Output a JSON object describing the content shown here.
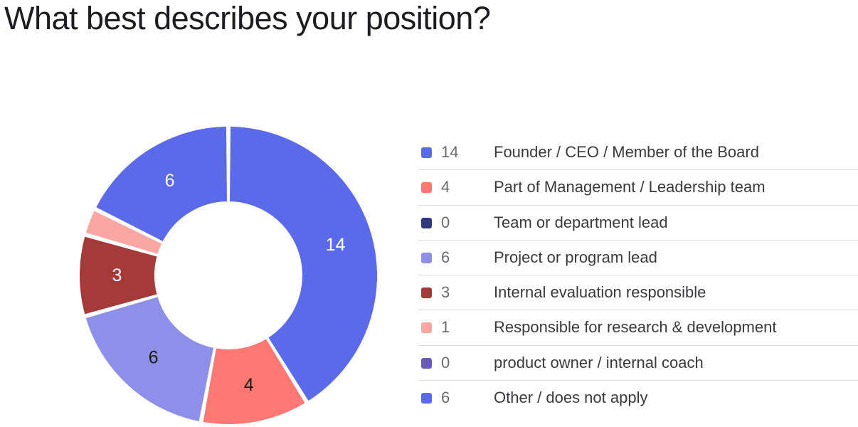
{
  "title": "What best describes your position?",
  "chart_data": {
    "type": "pie",
    "variant": "donut",
    "start_angle_deg": 0,
    "direction": "clockwise",
    "legend_position": "right",
    "slices": [
      {
        "label": "Founder / CEO / Member of the Board",
        "value": 14,
        "color": "#5b6ae8",
        "label_color": "#ffffff"
      },
      {
        "label": "Part of Management / Leadership team",
        "value": 4,
        "color": "#fd7873",
        "label_color": "#1a1a1a"
      },
      {
        "label": "Team or department lead",
        "value": 0,
        "color": "#2e3a7c",
        "label_color": "#ffffff"
      },
      {
        "label": "Project or program lead",
        "value": 6,
        "color": "#8e8fe9",
        "label_color": "#1a1a1a"
      },
      {
        "label": "Internal evaluation responsible",
        "value": 3,
        "color": "#a53a3a",
        "label_color": "#ffffff"
      },
      {
        "label": "Responsible for research & development",
        "value": 1,
        "color": "#fca6a4",
        "label_color": "#1a1a1a"
      },
      {
        "label": "product owner / internal coach",
        "value": 0,
        "color": "#6a5bb4",
        "label_color": "#ffffff"
      },
      {
        "label": "Other / does not apply",
        "value": 6,
        "color": "#5b6ae8",
        "label_color": "#ffffff"
      }
    ]
  }
}
